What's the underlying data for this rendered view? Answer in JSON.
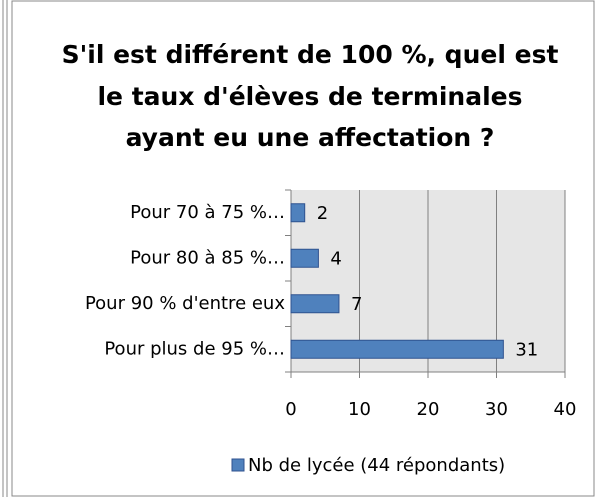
{
  "chart_data": {
    "type": "bar",
    "orientation": "horizontal",
    "title": [
      "S'il est différent de 100 %, quel est",
      "le taux d'élèves de terminales",
      "ayant eu une affectation ?"
    ],
    "categories": [
      "Pour 70 à 75 %…",
      "Pour 80 à 85 %…",
      "Pour 90 % d'entre eux",
      "Pour plus de 95 %…"
    ],
    "series": [
      {
        "name": "Nb de lycée (44 répondants)",
        "color": "#4f81bd",
        "values": [
          2,
          4,
          7,
          31
        ]
      }
    ],
    "xlim": [
      0,
      40
    ],
    "xticks": [
      0,
      10,
      20,
      30,
      40
    ],
    "grid": true,
    "legend": "bottom"
  }
}
